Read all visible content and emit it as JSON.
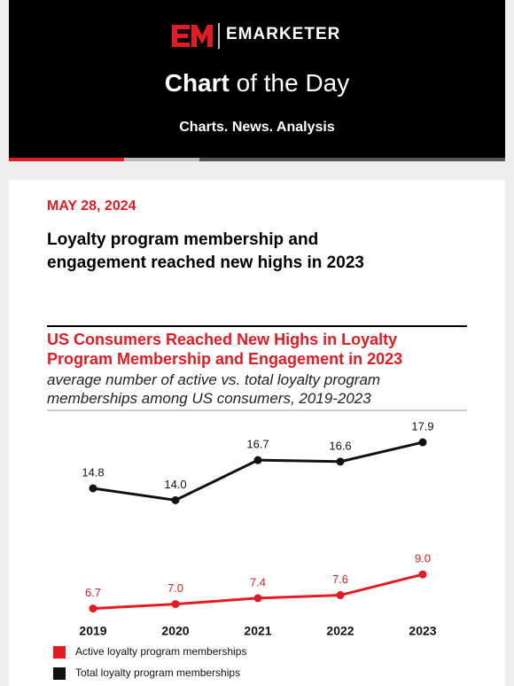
{
  "header": {
    "brand": "EMARKETER",
    "title_bold": "Chart",
    "title_rest": "of the Day",
    "tagline": "Charts. News. Analysis"
  },
  "article": {
    "date": "MAY 28, 2024",
    "headline": "Loyalty program membership and engagement reached new highs in 2023"
  },
  "chart_data": {
    "type": "line",
    "title": "US Consumers Reached New Highs in Loyalty Program Membership and Engagement in 2023",
    "subtitle": "average number of active vs. total loyalty program memberships among US consumers, 2019-2023",
    "categories": [
      "2019",
      "2020",
      "2021",
      "2022",
      "2023"
    ],
    "ylim": [
      5.9,
      18.5
    ],
    "series": [
      {
        "name": "Active loyalty program memberships",
        "color": "#e31b23",
        "values": [
          6.7,
          7.0,
          7.4,
          7.6,
          9.0
        ],
        "value_labels": [
          "6.7",
          "7.0",
          "7.4",
          "7.6",
          "9.0"
        ]
      },
      {
        "name": "Total loyalty program memberships",
        "color": "#111111",
        "values": [
          14.8,
          14.0,
          16.7,
          16.6,
          17.9
        ],
        "value_labels": [
          "14.8",
          "14.0",
          "16.7",
          "16.6",
          "17.9"
        ]
      }
    ]
  }
}
